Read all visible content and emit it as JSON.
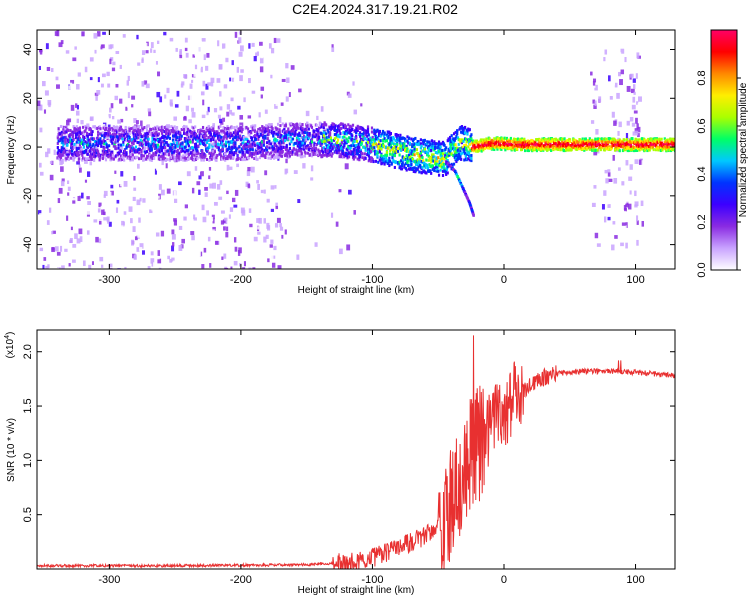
{
  "page": {
    "title": "C2E4.2024.317.19.21.R02"
  },
  "chart_data": [
    {
      "type": "heatmap",
      "title": "C2E4.2024.317.19.21.R02",
      "xlabel": "Height of straight line (km)",
      "ylabel": "Frequency (Hz)",
      "xlim": [
        -355,
        130
      ],
      "ylim": [
        -50,
        48
      ],
      "xticks": [
        -300,
        -200,
        -100,
        0,
        100
      ],
      "yticks": [
        -40,
        -20,
        0,
        20,
        40
      ],
      "colorbar": {
        "label": "Normalized spectral amplitude",
        "range": [
          0,
          1
        ],
        "ticks": [
          0.0,
          0.2,
          0.4,
          0.6,
          0.8
        ],
        "tick_labels": [
          "0.0",
          "0.2",
          "0.4",
          "0.6",
          "0.8"
        ],
        "colors": [
          "#ffffff",
          "#c9a3ff",
          "#8a2be2",
          "#3c00ff",
          "#0033ff",
          "#00c8ff",
          "#00ff66",
          "#aaff00",
          "#ffee00",
          "#ff8800",
          "#ff0000",
          "#ff0066"
        ]
      },
      "ridge": [
        {
          "x": -340,
          "y": 1.5
        },
        {
          "x": -300,
          "y": 1.5
        },
        {
          "x": -250,
          "y": 1.5
        },
        {
          "x": -200,
          "y": 1.5
        },
        {
          "x": -160,
          "y": 3
        },
        {
          "x": -130,
          "y": 3
        },
        {
          "x": -100,
          "y": 1
        },
        {
          "x": -80,
          "y": -2
        },
        {
          "x": -60,
          "y": -4
        },
        {
          "x": -45,
          "y": -5
        },
        {
          "x": -35,
          "y": 2
        },
        {
          "x": -25,
          "y": 0
        },
        {
          "x": -10,
          "y": 1.5
        },
        {
          "x": 10,
          "y": 1
        },
        {
          "x": 60,
          "y": 1
        },
        {
          "x": 130,
          "y": 1
        }
      ],
      "descending_tail": [
        {
          "x": -45,
          "y": -6
        },
        {
          "x": -38,
          "y": -10
        },
        {
          "x": -32,
          "y": -17
        },
        {
          "x": -27,
          "y": -23
        },
        {
          "x": -24,
          "y": -28
        }
      ],
      "noise_regions": [
        {
          "x_from": -355,
          "x_to": -165,
          "y_from": -50,
          "y_to": 48,
          "density": "high"
        },
        {
          "x_from": -165,
          "x_to": -100,
          "y_from": -45,
          "y_to": 45,
          "density": "low"
        },
        {
          "x_from": 65,
          "x_to": 105,
          "y_from": -40,
          "y_to": 43,
          "density": "medium"
        }
      ]
    },
    {
      "type": "line",
      "xlabel": "Height of straight line (km)",
      "ylabel": "SNR (10 * v/v)",
      "yscale_note": "(x10",
      "yscale_exp": "4",
      "xlim": [
        -355,
        130
      ],
      "ylim": [
        0,
        2.2
      ],
      "xticks": [
        -300,
        -200,
        -100,
        0,
        100
      ],
      "yticks": [
        0.5,
        1.0,
        1.5,
        2.0
      ],
      "ytick_labels": [
        "0.5",
        "1.0",
        "1.5",
        "2.0"
      ],
      "series": [
        {
          "color": "#e83030",
          "points": [
            {
              "x": -355,
              "y": 0.03
            },
            {
              "x": -250,
              "y": 0.03
            },
            {
              "x": -150,
              "y": 0.04
            },
            {
              "x": -120,
              "y": 0.06
            },
            {
              "x": -100,
              "y": 0.1
            },
            {
              "x": -80,
              "y": 0.2
            },
            {
              "x": -60,
              "y": 0.3
            },
            {
              "x": -45,
              "y": 0.45
            },
            {
              "x": -35,
              "y": 0.7
            },
            {
              "x": -28,
              "y": 1.0
            },
            {
              "x": -20,
              "y": 1.15
            },
            {
              "x": -10,
              "y": 1.3
            },
            {
              "x": 0,
              "y": 1.45
            },
            {
              "x": 10,
              "y": 1.6
            },
            {
              "x": 20,
              "y": 1.7
            },
            {
              "x": 30,
              "y": 1.76
            },
            {
              "x": 40,
              "y": 1.8
            },
            {
              "x": 60,
              "y": 1.82
            },
            {
              "x": 90,
              "y": 1.82
            },
            {
              "x": 110,
              "y": 1.8
            },
            {
              "x": 130,
              "y": 1.78
            }
          ]
        }
      ]
    }
  ]
}
